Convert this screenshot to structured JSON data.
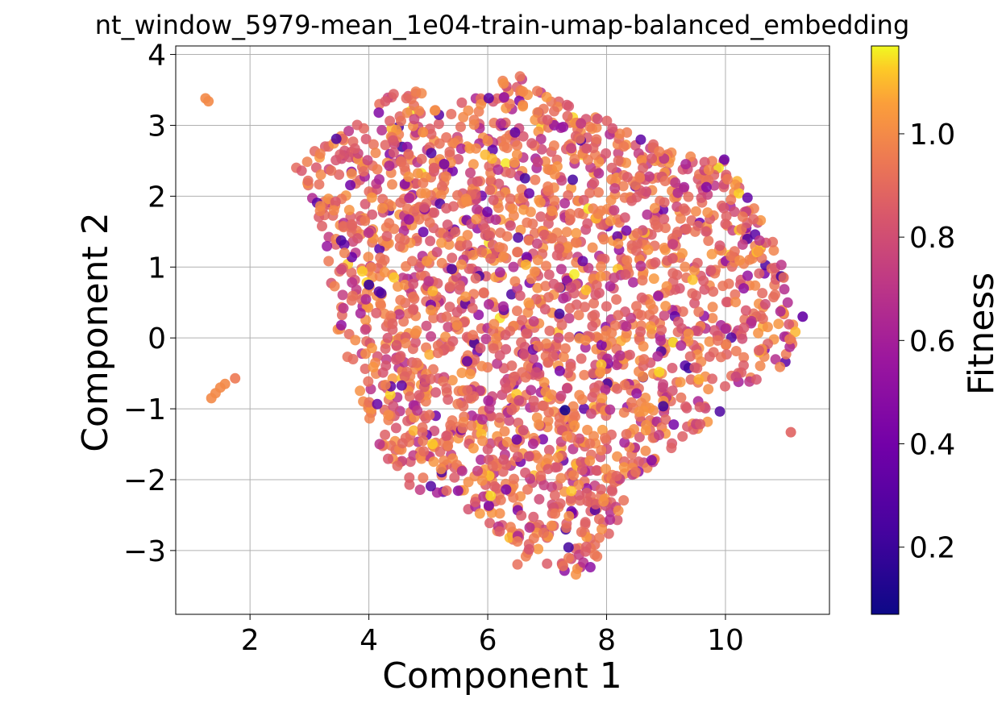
{
  "chart_data": {
    "type": "scatter",
    "title": "nt_window_5979-mean_1e04-train-umap-balanced_embedding",
    "xlabel": "Component 1",
    "ylabel": "Component 2",
    "xlim": [
      0.75,
      11.75
    ],
    "ylim": [
      -3.9,
      4.12
    ],
    "xticks": [
      2,
      4,
      6,
      8,
      10
    ],
    "xtick_labels": [
      "2",
      "4",
      "6",
      "8",
      "10"
    ],
    "yticks": [
      -3,
      -2,
      -1,
      0,
      1,
      2,
      3,
      4
    ],
    "ytick_labels": [
      "−3",
      "−2",
      "−1",
      "0",
      "1",
      "2",
      "3",
      "4"
    ],
    "grid": true,
    "colormap": "plasma",
    "colorbar": {
      "label": "Fitness",
      "range": [
        0.07,
        1.17
      ],
      "ticks": [
        0.2,
        0.4,
        0.6,
        0.8,
        1.0
      ],
      "tick_labels": [
        "0.2",
        "0.4",
        "0.6",
        "0.8",
        "1.0"
      ]
    },
    "cluster_outline": [
      [
        2.6,
        2.45
      ],
      [
        3.3,
        2.75
      ],
      [
        4.3,
        3.4
      ],
      [
        4.5,
        3.55
      ],
      [
        5.5,
        3.3
      ],
      [
        6.5,
        3.75
      ],
      [
        7.5,
        3.2
      ],
      [
        8.5,
        2.95
      ],
      [
        9.2,
        2.6
      ],
      [
        10.0,
        2.55
      ],
      [
        10.4,
        2.0
      ],
      [
        10.9,
        1.2
      ],
      [
        11.3,
        0.3
      ],
      [
        11.0,
        -0.4
      ],
      [
        10.2,
        -0.9
      ],
      [
        9.5,
        -1.3
      ],
      [
        8.6,
        -1.9
      ],
      [
        8.1,
        -2.7
      ],
      [
        7.7,
        -3.4
      ],
      [
        7.3,
        -3.3
      ],
      [
        6.5,
        -3.2
      ],
      [
        6.0,
        -2.7
      ],
      [
        5.4,
        -2.3
      ],
      [
        4.7,
        -2.1
      ],
      [
        4.3,
        -1.7
      ],
      [
        4.0,
        -1.2
      ],
      [
        3.8,
        -0.6
      ],
      [
        3.5,
        -0.1
      ],
      [
        3.3,
        0.8
      ],
      [
        3.2,
        1.6
      ],
      [
        2.9,
        2.3
      ]
    ],
    "isolated_points": [
      {
        "x": 1.25,
        "y": 3.38,
        "fitness": 1.0
      },
      {
        "x": 1.3,
        "y": 3.34,
        "fitness": 1.0
      },
      {
        "x": 1.35,
        "y": -0.85,
        "fitness": 1.0
      },
      {
        "x": 1.42,
        "y": -0.78,
        "fitness": 1.0
      },
      {
        "x": 1.5,
        "y": -0.7,
        "fitness": 1.0
      },
      {
        "x": 1.58,
        "y": -0.65,
        "fitness": 1.0
      },
      {
        "x": 1.75,
        "y": -0.57,
        "fitness": 0.95
      },
      {
        "x": 11.1,
        "y": -1.33,
        "fitness": 0.88
      },
      {
        "x": 11.3,
        "y": 0.3,
        "fitness": 0.35
      },
      {
        "x": 7.3,
        "y": -1.02,
        "fitness": 0.1
      },
      {
        "x": 4.0,
        "y": 0.75,
        "fitness": 0.2
      }
    ],
    "approx_point_count": 2200
  }
}
